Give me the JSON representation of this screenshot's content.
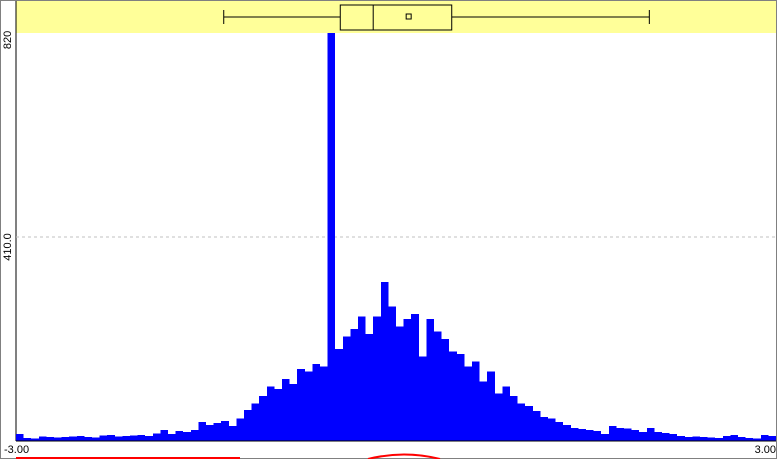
{
  "chart_data": {
    "type": "histogram_with_boxplot",
    "xlim": [
      -3.0,
      3.0
    ],
    "ylim": [
      0,
      820
    ],
    "x_tick_labels": [
      "-3.00",
      "3.00"
    ],
    "y_tick_labels": [
      "820",
      "410.0"
    ],
    "y_ticks": [
      820,
      410
    ],
    "grid": true,
    "colors": {
      "bars": "#0000ff",
      "boxplot_band": "#ffff99",
      "grid": "#c0c0c0",
      "bottom_curve": "#ff0000"
    },
    "bins": {
      "start": -3.0,
      "width": 0.06,
      "counts": [
        14,
        6,
        5,
        9,
        8,
        7,
        8,
        9,
        10,
        8,
        7,
        11,
        12,
        9,
        10,
        11,
        12,
        10,
        15,
        22,
        14,
        20,
        18,
        22,
        38,
        32,
        36,
        40,
        30,
        45,
        62,
        75,
        90,
        110,
        105,
        125,
        115,
        145,
        140,
        155,
        150,
        820,
        185,
        210,
        225,
        250,
        215,
        250,
        320,
        270,
        230,
        245,
        255,
        170,
        245,
        220,
        205,
        180,
        175,
        150,
        160,
        120,
        140,
        95,
        110,
        90,
        75,
        70,
        60,
        48,
        45,
        38,
        32,
        26,
        24,
        22,
        20,
        14,
        30,
        26,
        25,
        22,
        18,
        26,
        18,
        16,
        14,
        10,
        8,
        9,
        8,
        7,
        6,
        10,
        12,
        8,
        6,
        5,
        12,
        10
      ]
    },
    "boxplot": {
      "whisker_low": -1.36,
      "q1": -0.44,
      "median": -0.18,
      "q3": 0.44,
      "whisker_high": 2.0,
      "mean": 0.1
    }
  }
}
